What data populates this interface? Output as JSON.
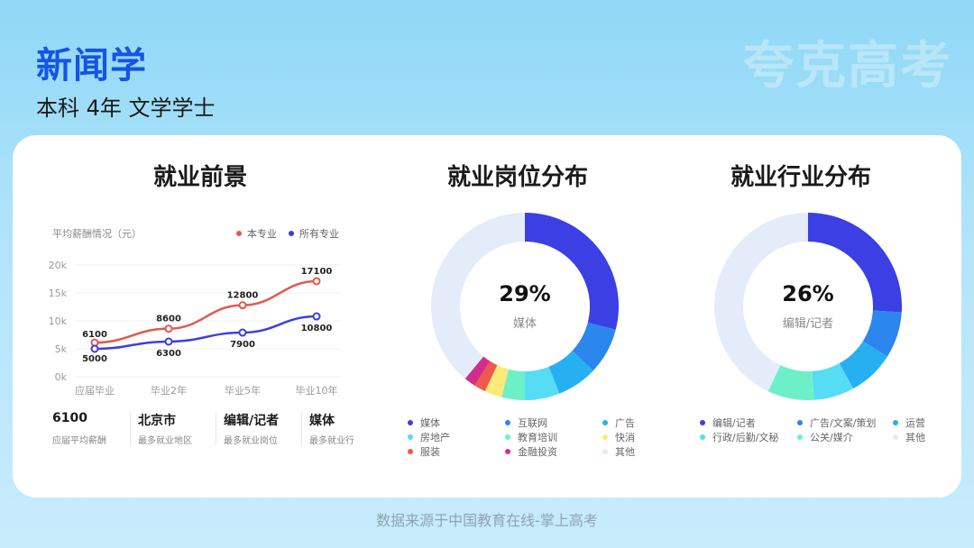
{
  "header": {
    "title": "新闻学",
    "subtitle": "本科 4年 文学学士",
    "watermark": "夸克高考"
  },
  "sections": {
    "prospect": "就业前景",
    "positions": "就业岗位分布",
    "industries": "就业行业分布"
  },
  "line_chart": {
    "subtitle": "平均薪酬情况（元）",
    "legend": [
      "本专业",
      "所有专业"
    ],
    "yticks": [
      "20k",
      "15k",
      "10k",
      "5k",
      "0k"
    ]
  },
  "stats": [
    {
      "value": "6100",
      "label": "应届平均薪酬"
    },
    {
      "value": "北京市",
      "label": "最多就业地区"
    },
    {
      "value": "编辑/记者",
      "label": "最多就业岗位"
    },
    {
      "value": "媒体",
      "label": "最多就业行"
    }
  ],
  "donut_positions": {
    "pct": "29%",
    "label": "媒体"
  },
  "donut_industries": {
    "pct": "26%",
    "label": "编辑/记者"
  },
  "source": "数据来源于中国教育在线-掌上高考",
  "colors": {
    "major": "#e05a4f",
    "all": "#3a3fe0"
  },
  "chart_data": [
    {
      "type": "line",
      "title": "平均薪酬情况（元）",
      "categories": [
        "应届毕业",
        "毕业2年",
        "毕业5年",
        "毕业10年"
      ],
      "series": [
        {
          "name": "本专业",
          "values": [
            6100,
            8600,
            12800,
            17100
          ],
          "color": "#e05a4f"
        },
        {
          "name": "所有专业",
          "values": [
            5000,
            6300,
            7900,
            10800
          ],
          "color": "#3a3fe0"
        }
      ],
      "ylim": [
        0,
        20000
      ]
    },
    {
      "type": "pie",
      "title": "就业岗位分布",
      "slices": [
        {
          "label": "媒体",
          "value": 29,
          "color": "#3b3fe4"
        },
        {
          "label": "互联网",
          "value": 8,
          "color": "#2b86ee"
        },
        {
          "label": "广告",
          "value": 7,
          "color": "#26b0f2"
        },
        {
          "label": "房地产",
          "value": 6,
          "color": "#55ddf6"
        },
        {
          "label": "教育培训",
          "value": 4,
          "color": "#6df0c8"
        },
        {
          "label": "快消",
          "value": 3,
          "color": "#fbe978"
        },
        {
          "label": "服装",
          "value": 2,
          "color": "#ef5a4c"
        },
        {
          "label": "金融投资",
          "value": 2,
          "color": "#d32d8a"
        },
        {
          "label": "其他",
          "value": 39,
          "color": "#e4ecfa"
        }
      ]
    },
    {
      "type": "pie",
      "title": "就业行业分布",
      "slices": [
        {
          "label": "编辑/记者",
          "value": 26,
          "color": "#3b3fe4"
        },
        {
          "label": "广告/文案/策划",
          "value": 8,
          "color": "#2b86ee"
        },
        {
          "label": "运营",
          "value": 8,
          "color": "#26b0f2"
        },
        {
          "label": "行政/后勤/文秘",
          "value": 7,
          "color": "#55ddf6"
        },
        {
          "label": "公关/媒介",
          "value": 8,
          "color": "#6df0c8"
        },
        {
          "label": "其他",
          "value": 43,
          "color": "#e4ecfa"
        }
      ]
    }
  ]
}
